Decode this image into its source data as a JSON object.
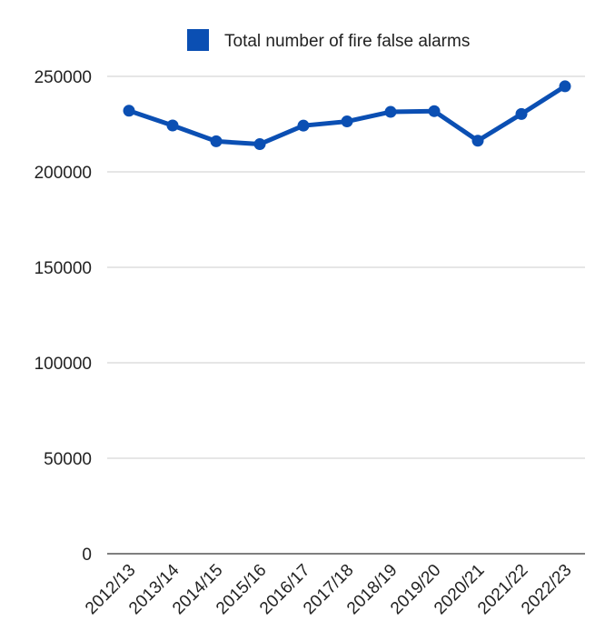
{
  "chart_data": {
    "type": "line",
    "categories": [
      "2012/13",
      "2013/14",
      "2014/15",
      "2015/16",
      "2016/17",
      "2017/18",
      "2018/19",
      "2019/20",
      "2020/21",
      "2021/22",
      "2022/23"
    ],
    "series": [
      {
        "name": "Total number of fire false alarms",
        "color": "#0b4fb3",
        "values": [
          232000,
          224300,
          216000,
          214500,
          224200,
          226400,
          231400,
          231800,
          216300,
          230300,
          244800
        ]
      }
    ],
    "yticks": [
      0,
      50000,
      100000,
      150000,
      200000,
      250000
    ],
    "ylim": [
      0,
      250000
    ],
    "grid": true,
    "legend_position": "top"
  }
}
